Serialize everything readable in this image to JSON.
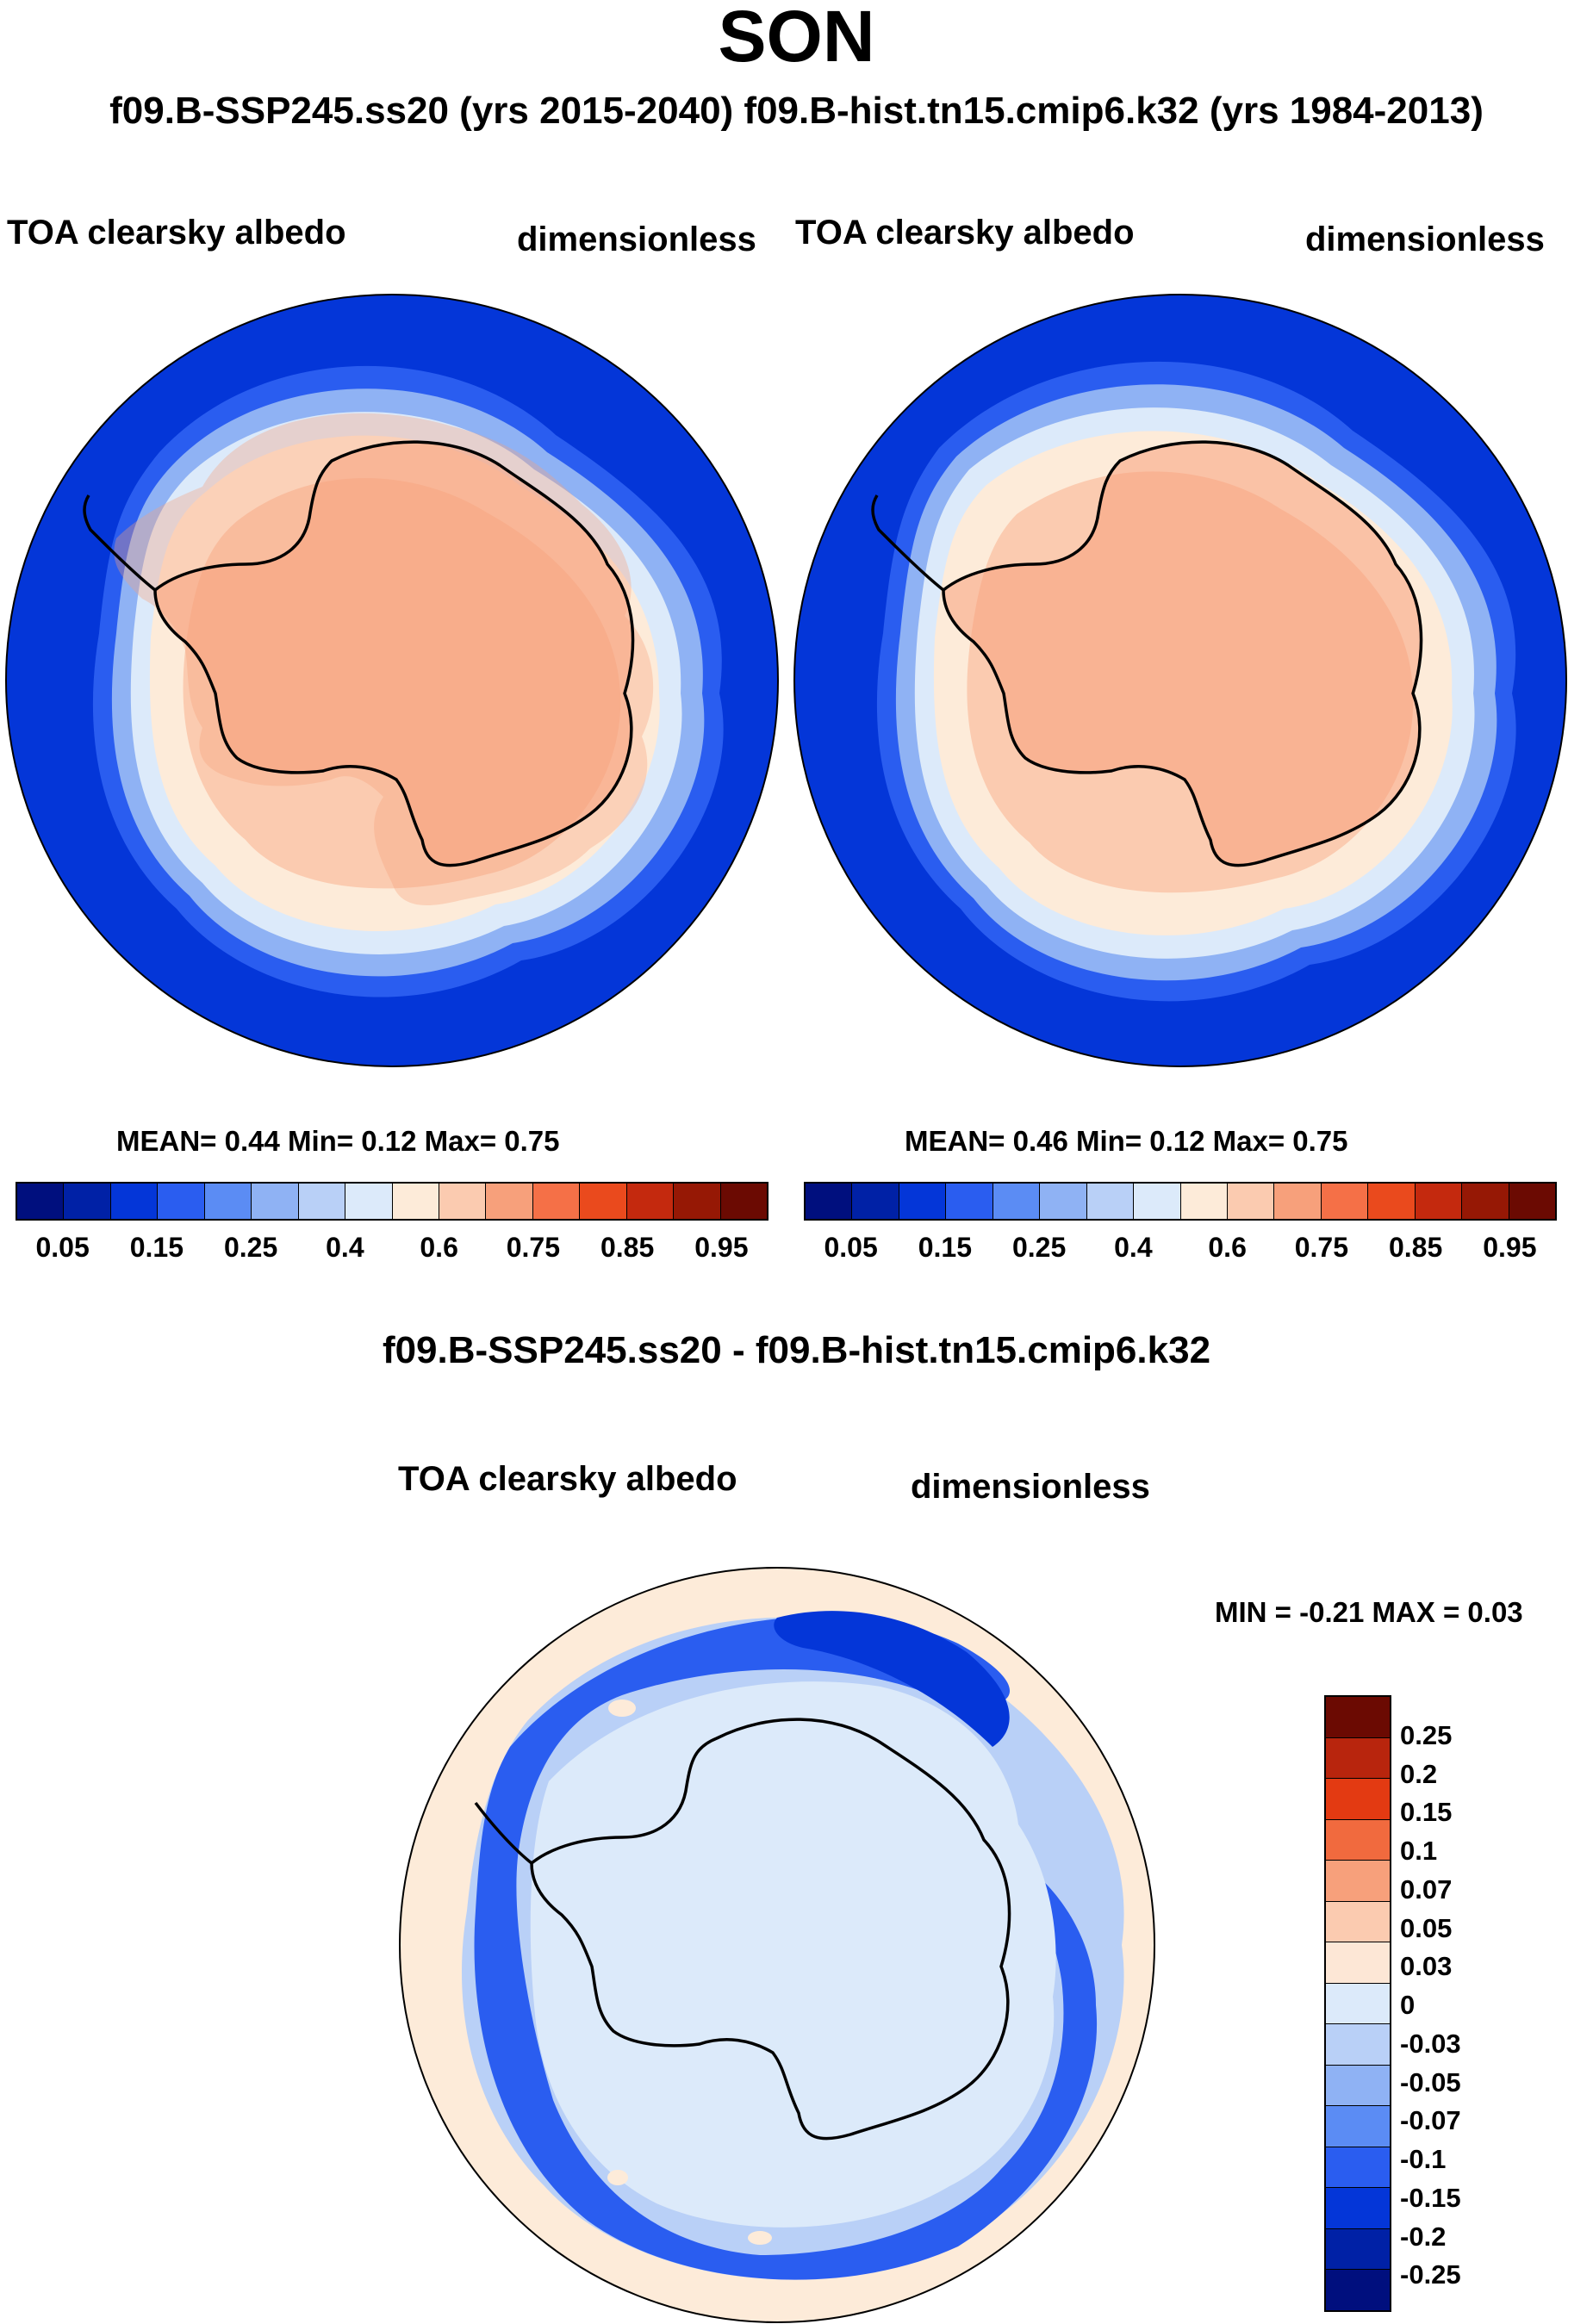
{
  "title": "SON",
  "subtitle": "f09.B-SSP245.ss20 (yrs 2015-2040)  f09.B-hist.tn15.cmip6.k32 (yrs 1984-2013)",
  "panels": [
    {
      "variable": "TOA clearsky albedo",
      "units": "dimensionless",
      "stats": "MEAN=   0.44  Min=   0.12  Max=   0.75"
    },
    {
      "variable": "TOA clearsky albedo",
      "units": "dimensionless",
      "stats": "MEAN=   0.46  Min=   0.12  Max=   0.75"
    }
  ],
  "colorbar_top": {
    "ticks": [
      "0.05",
      "0.15",
      "0.25",
      "0.4",
      "0.6",
      "0.75",
      "0.85",
      "0.95"
    ],
    "colors": [
      "#000f7e",
      "#0021a6",
      "#0436d8",
      "#2a5df0",
      "#5b8cf4",
      "#8fb2f4",
      "#b9d0f7",
      "#dceafa",
      "#fdebd9",
      "#fbcbb0",
      "#f7a07b",
      "#f57047",
      "#ea4a1d",
      "#c4290e",
      "#961805",
      "#6b0a02"
    ]
  },
  "difference": {
    "title": "f09.B-SSP245.ss20 - f09.B-hist.tn15.cmip6.k32",
    "variable": "TOA clearsky albedo",
    "units": "dimensionless",
    "stats": "MIN =  -0.21 MAX =   0.03",
    "colorbar": {
      "ticks": [
        "0.25",
        "0.2",
        "0.15",
        "0.1",
        "0.07",
        "0.05",
        "0.03",
        "0",
        "-0.03",
        "-0.05",
        "-0.07",
        "-0.1",
        "-0.15",
        "-0.2",
        "-0.25"
      ],
      "colors": [
        "#6b0a02",
        "#b8250d",
        "#e33a12",
        "#f16a3e",
        "#f7a07b",
        "#fbcbb0",
        "#fde7d6",
        "#dceafa",
        "#b9d0f7",
        "#8fb2f4",
        "#5b8cf4",
        "#2a5df0",
        "#0436d8",
        "#0021a6",
        "#000f7e"
      ]
    }
  }
}
